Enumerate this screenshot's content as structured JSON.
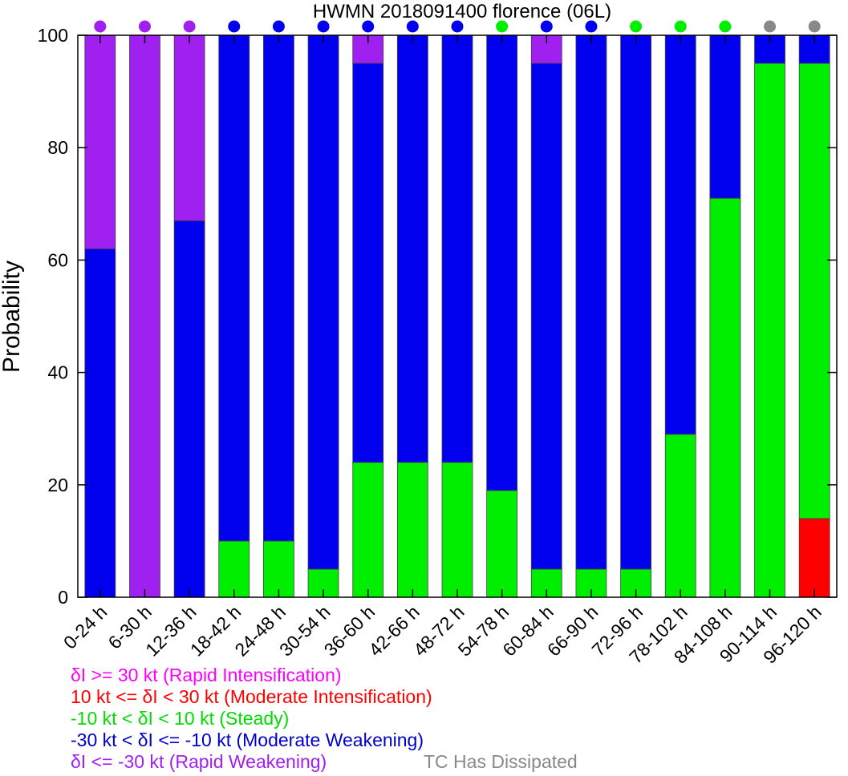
{
  "chart_data": {
    "type": "bar",
    "stacked": true,
    "title": "HWMN 2018091400 florence (06L)",
    "ylabel": "Probability",
    "xlabel": "",
    "ylim": [
      0,
      100
    ],
    "yticks": [
      0,
      20,
      40,
      60,
      80,
      100
    ],
    "grid": false,
    "categories": [
      "0-24 h",
      "6-30 h",
      "12-36 h",
      "18-42 h",
      "24-48 h",
      "30-54 h",
      "36-60 h",
      "42-66 h",
      "48-72 h",
      "54-78 h",
      "60-84 h",
      "66-90 h",
      "72-96 h",
      "78-102 h",
      "84-108 h",
      "90-114 h",
      "96-120 h"
    ],
    "series": [
      {
        "name": "δI <= -30 kt (Rapid Weakening)",
        "key": "rw",
        "color": "#a020f0",
        "values": [
          38,
          100,
          33,
          0,
          0,
          0,
          5,
          0,
          0,
          0,
          5,
          0,
          0,
          0,
          0,
          0,
          0
        ]
      },
      {
        "name": "-30 kt < δI <= -10 kt (Moderate Weakening)",
        "key": "mw",
        "color": "#0000ee",
        "values": [
          62,
          0,
          67,
          90,
          90,
          95,
          71,
          76,
          76,
          81,
          90,
          95,
          95,
          71,
          29,
          5,
          5
        ]
      },
      {
        "name": "-10 kt < δI < 10 kt (Steady)",
        "key": "st",
        "color": "#00ee00",
        "values": [
          0,
          0,
          0,
          10,
          10,
          5,
          24,
          24,
          24,
          19,
          5,
          5,
          5,
          29,
          71,
          95,
          81
        ]
      },
      {
        "name": "10 kt <= δI < 30 kt (Moderate Intensification)",
        "key": "mi",
        "color": "#ff0000",
        "values": [
          0,
          0,
          0,
          0,
          0,
          0,
          0,
          0,
          0,
          0,
          0,
          0,
          0,
          0,
          0,
          0,
          14
        ]
      },
      {
        "name": "δI >= 30 kt (Rapid Intensification)",
        "key": "ri",
        "color": "#ff00ff",
        "values": [
          0,
          0,
          0,
          0,
          0,
          0,
          0,
          0,
          0,
          0,
          0,
          0,
          0,
          0,
          0,
          0,
          0
        ]
      }
    ],
    "stack_order_bottom_to_top": [
      "mi",
      "st",
      "mw",
      "rw"
    ],
    "top_markers": {
      "values": [
        "rw",
        "rw",
        "rw",
        "mw",
        "mw",
        "mw",
        "mw",
        "mw",
        "mw",
        "st",
        "mw",
        "mw",
        "st",
        "st",
        "st",
        "dissipated",
        "dissipated"
      ]
    },
    "dissipated_color": "#888888"
  },
  "legend": [
    {
      "label": "δI >= 30 kt (Rapid Intensification)",
      "color": "#ff00ff"
    },
    {
      "label": "10 kt <= δI < 30 kt (Moderate Intensification)",
      "color": "#ff0000"
    },
    {
      "label": "-10 kt < δI < 10 kt (Steady)",
      "color": "#00dd00"
    },
    {
      "label": "-30 kt < δI <= -10 kt (Moderate Weakening)",
      "color": "#0000cc"
    },
    {
      "label": "δI <= -30 kt (Rapid Weakening)",
      "color": "#a020f0"
    }
  ],
  "dissipated_note": {
    "label": "TC Has Dissipated",
    "color": "#888888"
  }
}
